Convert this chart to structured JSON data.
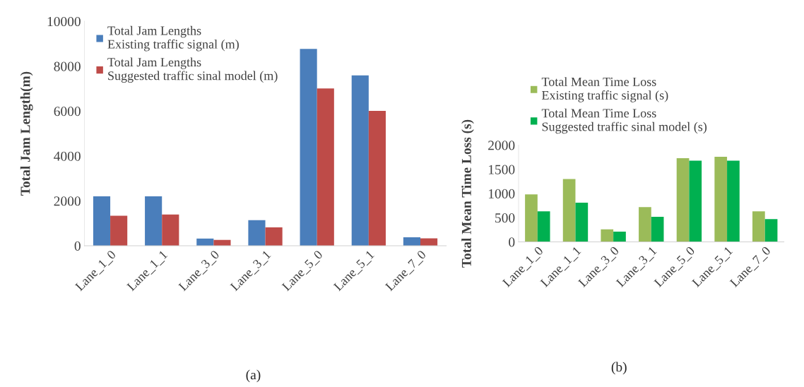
{
  "chart_data": [
    {
      "type": "bar",
      "ylabel": "Total Jam Length(m)",
      "categories": [
        "Lane_1_0",
        "Lane_1_1",
        "Lane_3_0",
        "Lane_3_1",
        "Lane_5_0",
        "Lane_5_1",
        "Lane_7_0"
      ],
      "series": [
        {
          "name": "Total Jam Lengths\nExisting traffic signal (m)",
          "color": "#4a7ebb",
          "values": [
            2200,
            2200,
            320,
            1140,
            8770,
            7590,
            380
          ]
        },
        {
          "name": "Total Jam Lengths\nSuggested traffic sinal model (m)",
          "color": "#be4b48",
          "values": [
            1340,
            1390,
            260,
            820,
            7010,
            6010,
            330
          ]
        }
      ],
      "ylim": [
        0,
        10000
      ],
      "yticks": [
        0,
        2000,
        4000,
        6000,
        8000,
        10000
      ],
      "grid": false,
      "legend": "top left",
      "annotations": [
        "(a)"
      ]
    },
    {
      "type": "bar",
      "ylabel": "Total Mean Time Loss (s)",
      "categories": [
        "Lane_1_0",
        "Lane_1_1",
        "Lane_3_0",
        "Lane_3_1",
        "Lane_5_0",
        "Lane_5_1",
        "Lane_7_0"
      ],
      "series": [
        {
          "name": "Total Mean Time Loss\nExisting traffic signal (s)",
          "color": "#9bbb59",
          "values": [
            980,
            1300,
            260,
            720,
            1730,
            1760,
            630
          ]
        },
        {
          "name": "Total Mean Time Loss\nSuggested traffic sinal model (s)",
          "color": "#00b050",
          "values": [
            630,
            810,
            210,
            520,
            1680,
            1680,
            470
          ]
        }
      ],
      "ylim": [
        0,
        2000
      ],
      "yticks": [
        0,
        500,
        1000,
        1500,
        2000
      ],
      "grid": false,
      "legend": "top",
      "annotations": [
        "(b)"
      ]
    }
  ]
}
